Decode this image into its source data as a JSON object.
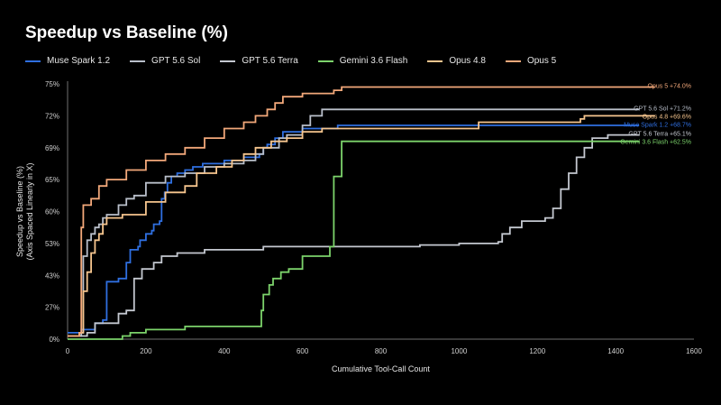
{
  "chart_data": {
    "type": "line",
    "title": "Speedup vs Baseline (%)",
    "xlabel": "Cumulative Tool-Call Count",
    "ylabel": "Speedup vs Baseline (%)",
    "ylabel_sub": "(Axis Spaced Linearly in X)",
    "x_ticks": [
      "0",
      "200",
      "400",
      "600",
      "800",
      "1000",
      "1200",
      "1400",
      "1600"
    ],
    "x_tick_values": [
      0,
      200,
      400,
      600,
      800,
      1000,
      1200,
      1400,
      1600
    ],
    "y_ticks": [
      "0%",
      "27%",
      "43%",
      "53%",
      "60%",
      "65%",
      "69%",
      "72%",
      "75%"
    ],
    "xlim": [
      0,
      1600
    ],
    "legend_position": "top",
    "grid": false,
    "series": [
      {
        "name": "Muse Spark 1.2",
        "color": "#2f6fe0",
        "end_label": "Muse Spark 1.2 +68.7%",
        "points": [
          [
            0,
            0.2
          ],
          [
            35,
            0.3
          ],
          [
            70,
            0.5
          ],
          [
            90,
            0.6
          ],
          [
            100,
            1.8
          ],
          [
            130,
            1.9
          ],
          [
            145,
            1.9
          ],
          [
            150,
            2.4
          ],
          [
            160,
            2.8
          ],
          [
            180,
            2.9
          ],
          [
            185,
            3.1
          ],
          [
            200,
            3.3
          ],
          [
            215,
            3.4
          ],
          [
            220,
            3.6
          ],
          [
            235,
            3.7
          ],
          [
            240,
            4.4
          ],
          [
            248,
            4.6
          ],
          [
            255,
            4.9
          ],
          [
            265,
            5.1
          ],
          [
            280,
            5.2
          ],
          [
            300,
            5.3
          ],
          [
            320,
            5.4
          ],
          [
            345,
            5.5
          ],
          [
            400,
            5.6
          ],
          [
            450,
            5.7
          ],
          [
            490,
            5.8
          ],
          [
            500,
            6.0
          ],
          [
            510,
            6.1
          ],
          [
            530,
            6.3
          ],
          [
            550,
            6.5
          ],
          [
            600,
            6.6
          ],
          [
            690,
            6.7
          ],
          [
            900,
            6.7
          ],
          [
            1460,
            6.7
          ]
        ]
      },
      {
        "name": "GPT 5.6 Sol",
        "color": "#b9bfca",
        "end_label": "GPT 5.6 Sol +71.2%",
        "points": [
          [
            0,
            0.1
          ],
          [
            35,
            0.2
          ],
          [
            40,
            2.6
          ],
          [
            50,
            3.1
          ],
          [
            60,
            3.3
          ],
          [
            70,
            3.5
          ],
          [
            80,
            3.6
          ],
          [
            90,
            3.8
          ],
          [
            100,
            3.9
          ],
          [
            130,
            4.2
          ],
          [
            150,
            4.4
          ],
          [
            170,
            4.5
          ],
          [
            200,
            4.9
          ],
          [
            250,
            5.1
          ],
          [
            300,
            5.2
          ],
          [
            350,
            5.4
          ],
          [
            400,
            5.5
          ],
          [
            450,
            5.6
          ],
          [
            480,
            5.8
          ],
          [
            500,
            6.0
          ],
          [
            540,
            6.3
          ],
          [
            560,
            6.4
          ],
          [
            600,
            6.7
          ],
          [
            620,
            7.0
          ],
          [
            650,
            7.2
          ],
          [
            900,
            7.2
          ],
          [
            1200,
            7.2
          ],
          [
            1460,
            7.2
          ]
        ]
      },
      {
        "name": "GPT 5.6 Terra",
        "color": "#c4c8d0",
        "end_label": "GPT 5.6 Terra +65.1%",
        "points": [
          [
            0,
            0.1
          ],
          [
            50,
            0.2
          ],
          [
            70,
            0.5
          ],
          [
            130,
            0.8
          ],
          [
            150,
            0.9
          ],
          [
            170,
            1.9
          ],
          [
            190,
            2.2
          ],
          [
            220,
            2.4
          ],
          [
            240,
            2.6
          ],
          [
            280,
            2.7
          ],
          [
            350,
            2.8
          ],
          [
            500,
            2.9
          ],
          [
            700,
            2.9
          ],
          [
            900,
            2.95
          ],
          [
            1000,
            3.0
          ],
          [
            1100,
            3.05
          ],
          [
            1110,
            3.3
          ],
          [
            1130,
            3.5
          ],
          [
            1160,
            3.7
          ],
          [
            1220,
            3.8
          ],
          [
            1240,
            4.1
          ],
          [
            1260,
            4.7
          ],
          [
            1280,
            5.2
          ],
          [
            1300,
            5.7
          ],
          [
            1320,
            6.0
          ],
          [
            1340,
            6.3
          ],
          [
            1380,
            6.4
          ],
          [
            1460,
            6.4
          ]
        ]
      },
      {
        "name": "Gemini 3.6 Flash",
        "color": "#7cd36b",
        "end_label": "Gemini 3.6 Flash +62.5%",
        "points": [
          [
            0,
            0.0
          ],
          [
            60,
            0.0
          ],
          [
            140,
            0.1
          ],
          [
            160,
            0.2
          ],
          [
            200,
            0.3
          ],
          [
            300,
            0.4
          ],
          [
            490,
            0.4
          ],
          [
            495,
            0.9
          ],
          [
            500,
            1.4
          ],
          [
            515,
            1.7
          ],
          [
            525,
            1.9
          ],
          [
            545,
            2.1
          ],
          [
            565,
            2.2
          ],
          [
            600,
            2.6
          ],
          [
            670,
            2.9
          ],
          [
            680,
            5.1
          ],
          [
            700,
            6.2
          ],
          [
            1000,
            6.2
          ],
          [
            1200,
            6.2
          ],
          [
            1460,
            6.2
          ]
        ]
      },
      {
        "name": "Opus 4.8",
        "color": "#f6c58e",
        "end_label": "Opus 4.8 +69.6%",
        "points": [
          [
            0,
            0.1
          ],
          [
            30,
            0.2
          ],
          [
            40,
            1.5
          ],
          [
            50,
            2.1
          ],
          [
            60,
            2.7
          ],
          [
            70,
            3.1
          ],
          [
            80,
            3.3
          ],
          [
            90,
            3.6
          ],
          [
            100,
            3.8
          ],
          [
            140,
            3.9
          ],
          [
            200,
            4.3
          ],
          [
            250,
            4.6
          ],
          [
            300,
            4.8
          ],
          [
            330,
            5.2
          ],
          [
            380,
            5.4
          ],
          [
            420,
            5.6
          ],
          [
            450,
            5.8
          ],
          [
            480,
            6.0
          ],
          [
            520,
            6.2
          ],
          [
            560,
            6.3
          ],
          [
            600,
            6.5
          ],
          [
            650,
            6.6
          ],
          [
            700,
            6.6
          ],
          [
            1000,
            6.6
          ],
          [
            1050,
            6.8
          ],
          [
            1200,
            6.8
          ],
          [
            1310,
            6.9
          ],
          [
            1320,
            7.0
          ],
          [
            1500,
            7.0
          ]
        ]
      },
      {
        "name": "Opus 5",
        "color": "#f2a87a",
        "end_label": "Opus 5 +74.0%",
        "points": [
          [
            0,
            0.1
          ],
          [
            30,
            0.2
          ],
          [
            35,
            3.5
          ],
          [
            40,
            4.2
          ],
          [
            60,
            4.4
          ],
          [
            80,
            4.8
          ],
          [
            100,
            5.0
          ],
          [
            150,
            5.3
          ],
          [
            200,
            5.6
          ],
          [
            250,
            5.8
          ],
          [
            300,
            6.0
          ],
          [
            350,
            6.3
          ],
          [
            400,
            6.6
          ],
          [
            450,
            6.8
          ],
          [
            480,
            7.0
          ],
          [
            510,
            7.2
          ],
          [
            530,
            7.4
          ],
          [
            550,
            7.6
          ],
          [
            600,
            7.7
          ],
          [
            680,
            7.8
          ],
          [
            700,
            7.9
          ],
          [
            900,
            7.9
          ],
          [
            1100,
            7.9
          ],
          [
            1300,
            7.9
          ],
          [
            1500,
            7.9
          ]
        ]
      }
    ]
  }
}
